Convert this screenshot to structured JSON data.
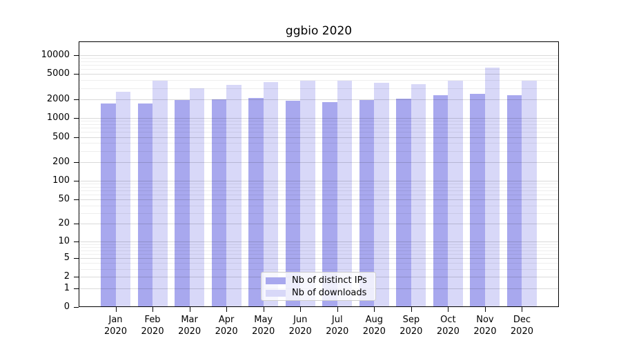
{
  "chart_data": {
    "type": "bar",
    "title": "ggbio 2020",
    "categories": [
      "Jan",
      "Feb",
      "Mar",
      "Apr",
      "May",
      "Jun",
      "Jul",
      "Aug",
      "Sep",
      "Oct",
      "Nov",
      "Dec"
    ],
    "year_label": "2020",
    "series": [
      {
        "name": "Nb of distinct IPs",
        "color": "#a8a8ee",
        "values": [
          1690,
          1710,
          1930,
          1965,
          2065,
          1870,
          1790,
          1915,
          2030,
          2320,
          2430,
          2280
        ]
      },
      {
        "name": "Nb of downloads",
        "color": "#d8d8f8",
        "values": [
          2630,
          3950,
          2940,
          3340,
          3700,
          3870,
          3930,
          3640,
          3430,
          3880,
          6270,
          3880
        ]
      }
    ],
    "y_ticks": [
      0,
      1,
      2,
      5,
      10,
      20,
      50,
      100,
      200,
      500,
      1000,
      2000,
      5000,
      10000
    ],
    "y_scale": "log1p",
    "ylim": [
      0,
      16500
    ],
    "xlabel": "",
    "ylabel": "",
    "grid": true,
    "legend_position": "lower center"
  }
}
